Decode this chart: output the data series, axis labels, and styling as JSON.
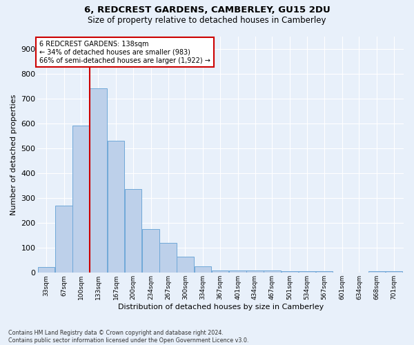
{
  "title1": "6, REDCREST GARDENS, CAMBERLEY, GU15 2DU",
  "title2": "Size of property relative to detached houses in Camberley",
  "xlabel": "Distribution of detached houses by size in Camberley",
  "ylabel": "Number of detached properties",
  "footnote": "Contains HM Land Registry data © Crown copyright and database right 2024.\nContains public sector information licensed under the Open Government Licence v3.0.",
  "bar_categories": [
    "33sqm",
    "67sqm",
    "100sqm",
    "133sqm",
    "167sqm",
    "200sqm",
    "234sqm",
    "267sqm",
    "300sqm",
    "334sqm",
    "367sqm",
    "401sqm",
    "434sqm",
    "467sqm",
    "501sqm",
    "534sqm",
    "567sqm",
    "601sqm",
    "634sqm",
    "668sqm",
    "701sqm"
  ],
  "bar_values": [
    22,
    270,
    590,
    740,
    530,
    335,
    175,
    120,
    65,
    25,
    10,
    10,
    10,
    8,
    5,
    5,
    5,
    0,
    0,
    5,
    5
  ],
  "bar_color": "#bdd0ea",
  "bar_edge_color": "#6fa8d8",
  "property_line_x": 133,
  "property_line_color": "#cc0000",
  "annotation_text": "6 REDCREST GARDENS: 138sqm\n← 34% of detached houses are smaller (983)\n66% of semi-detached houses are larger (1,922) →",
  "annotation_box_color": "#cc0000",
  "ylim": [
    0,
    950
  ],
  "yticks": [
    0,
    100,
    200,
    300,
    400,
    500,
    600,
    700,
    800,
    900
  ],
  "bg_color": "#e8f0fa",
  "plot_bg_color": "#e8f0fa",
  "grid_color": "#ffffff",
  "bin_starts": [
    33,
    67,
    100,
    133,
    167,
    200,
    234,
    267,
    300,
    334,
    367,
    401,
    434,
    467,
    501,
    534,
    567,
    601,
    634,
    668,
    701
  ],
  "bin_width": 33
}
